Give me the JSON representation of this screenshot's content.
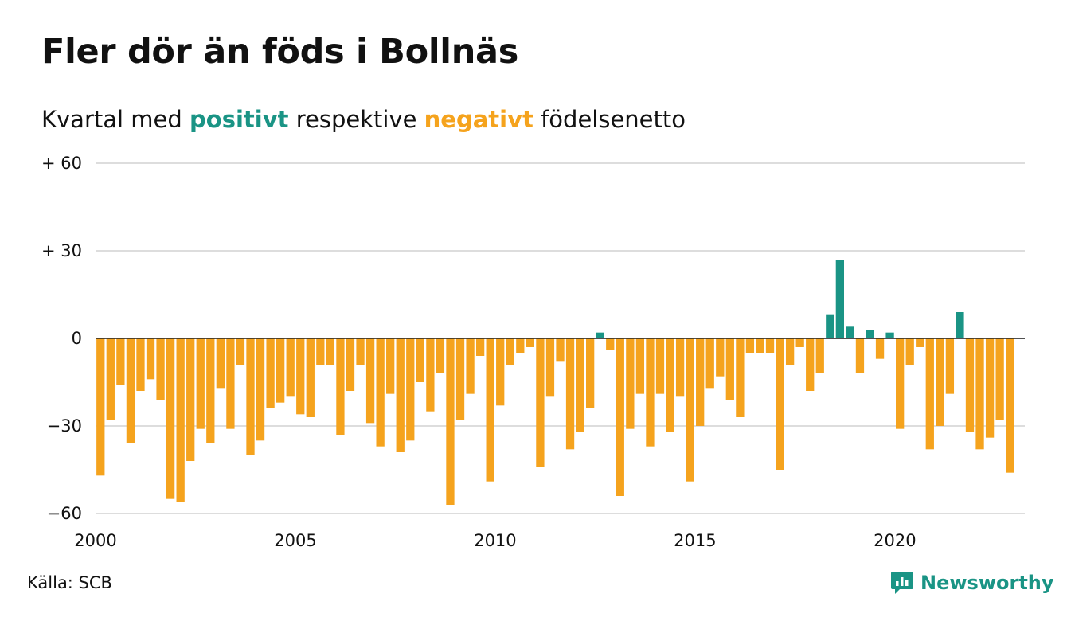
{
  "title": "Fler dör än föds i Bollnäs",
  "subtitle": {
    "before": "Kvartal med",
    "positive_word": "positivt",
    "middle": "respektive",
    "negative_word": "negativt",
    "after": "födelsenetto"
  },
  "source": "Källa: SCB",
  "brand": {
    "name": "Newsworthy",
    "icon": "newsworthy-logo-icon"
  },
  "colors": {
    "positive": "#1a9485",
    "negative": "#f5a31d",
    "grid": "#dddddd",
    "text": "#111111"
  },
  "chart_data": {
    "type": "bar",
    "x_start": 2000,
    "x_step": 0.25,
    "xlim": [
      2000,
      2023.25
    ],
    "ylim": [
      -60,
      60
    ],
    "y_ticks": [
      {
        "value": 60,
        "label": "+ 60"
      },
      {
        "value": 30,
        "label": "+ 30"
      },
      {
        "value": 0,
        "label": "0"
      },
      {
        "value": -30,
        "label": "−30"
      },
      {
        "value": -60,
        "label": "−60"
      }
    ],
    "x_ticks": [
      {
        "value": 2000,
        "label": "2000"
      },
      {
        "value": 2005,
        "label": "2005"
      },
      {
        "value": 2010,
        "label": "2010"
      },
      {
        "value": 2015,
        "label": "2015"
      },
      {
        "value": 2020,
        "label": "2020"
      }
    ],
    "grid": true,
    "values": [
      -47,
      -28,
      -16,
      -36,
      -18,
      -14,
      -21,
      -55,
      -56,
      -42,
      -31,
      -36,
      -17,
      -31,
      -9,
      -40,
      -35,
      -24,
      -22,
      -20,
      -26,
      -27,
      -9,
      -9,
      -33,
      -18,
      -9,
      -29,
      -37,
      -19,
      -39,
      -35,
      -15,
      -25,
      -12,
      -57,
      -28,
      -19,
      -6,
      -49,
      -23,
      -9,
      -5,
      -3,
      -44,
      -20,
      -8,
      -38,
      -32,
      -24,
      2,
      -4,
      -54,
      -31,
      -19,
      -37,
      -19,
      -32,
      -20,
      -49,
      -30,
      -17,
      -13,
      -21,
      -27,
      -5,
      -5,
      -5,
      -45,
      -9,
      -3,
      -18,
      -12,
      8,
      27,
      4,
      -12,
      3,
      -7,
      2,
      -31,
      -9,
      -3,
      -38,
      -30,
      -19,
      9,
      -32,
      -38,
      -34,
      -28,
      -46
    ]
  }
}
